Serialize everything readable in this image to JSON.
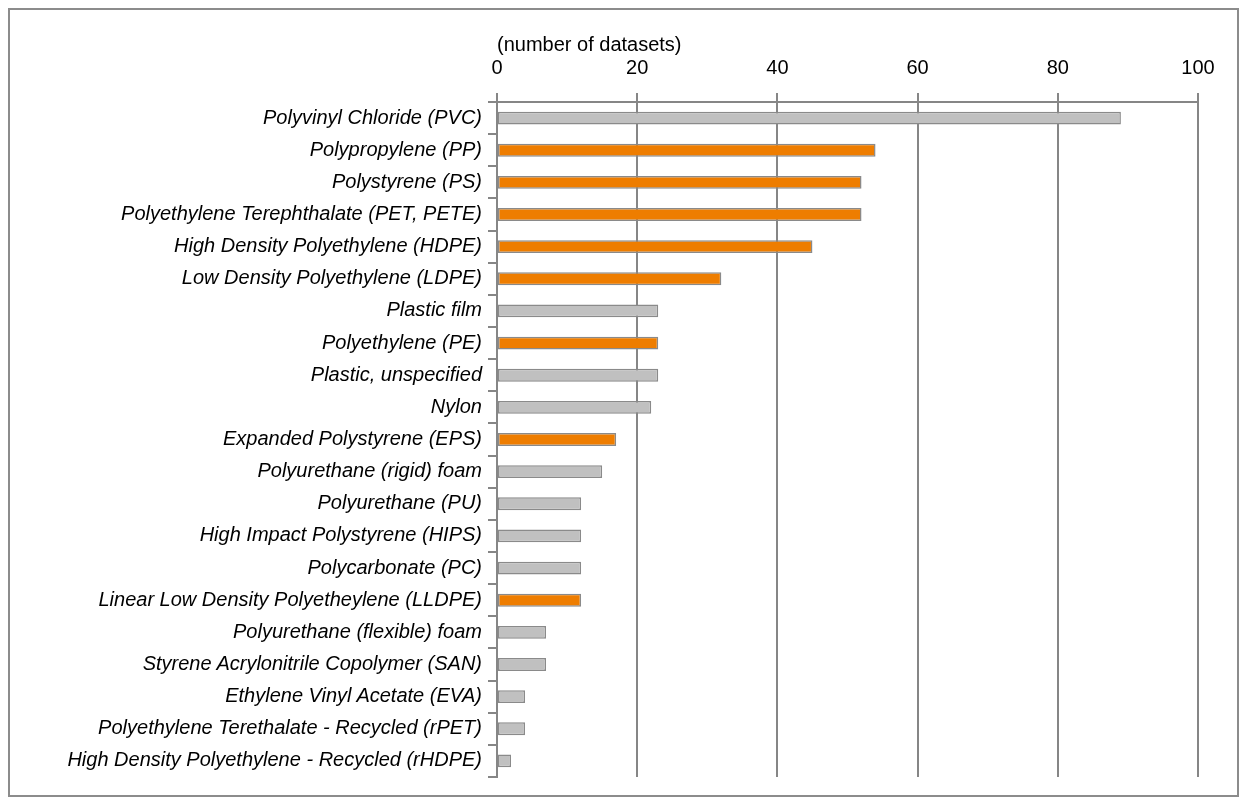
{
  "chart_data": {
    "type": "bar",
    "orientation": "horizontal",
    "xlabel": "(number of datasets)",
    "categories": [
      "Polyvinyl Chloride (PVC)",
      "Polypropylene (PP)",
      "Polystyrene (PS)",
      "Polyethylene Terephthalate (PET, PETE)",
      "High Density Polyethylene (HDPE)",
      "Low Density Polyethylene (LDPE)",
      "Plastic film",
      "Polyethylene (PE)",
      "Plastic, unspecified",
      "Nylon",
      "Expanded Polystyrene (EPS)",
      "Polyurethane (rigid) foam",
      "Polyurethane (PU)",
      "High Impact Polystyrene (HIPS)",
      "Polycarbonate (PC)",
      "Linear Low Density Polyetheylene (LLDPE)",
      "Polyurethane (flexible) foam",
      "Styrene Acrylonitrile Copolymer (SAN)",
      "Ethylene Vinyl Acetate (EVA)",
      "Polyethylene Terethalate - Recycled (rPET)",
      "High Density Polyethylene - Recycled (rHDPE)"
    ],
    "values": [
      89,
      54,
      52,
      52,
      45,
      32,
      23,
      23,
      23,
      22,
      17,
      15,
      12,
      12,
      12,
      12,
      7,
      7,
      4,
      4,
      2
    ],
    "colors": [
      "#c0c0c0",
      "#ee7d00",
      "#ee7d00",
      "#ee7d00",
      "#ee7d00",
      "#ee7d00",
      "#c0c0c0",
      "#ee7d00",
      "#c0c0c0",
      "#c0c0c0",
      "#ee7d00",
      "#c0c0c0",
      "#c0c0c0",
      "#c0c0c0",
      "#c0c0c0",
      "#ee7d00",
      "#c0c0c0",
      "#c0c0c0",
      "#c0c0c0",
      "#c0c0c0",
      "#c0c0c0"
    ],
    "xlim": [
      0,
      100
    ],
    "xticks": [
      0,
      20,
      40,
      60,
      80,
      100
    ],
    "grid": "x"
  }
}
